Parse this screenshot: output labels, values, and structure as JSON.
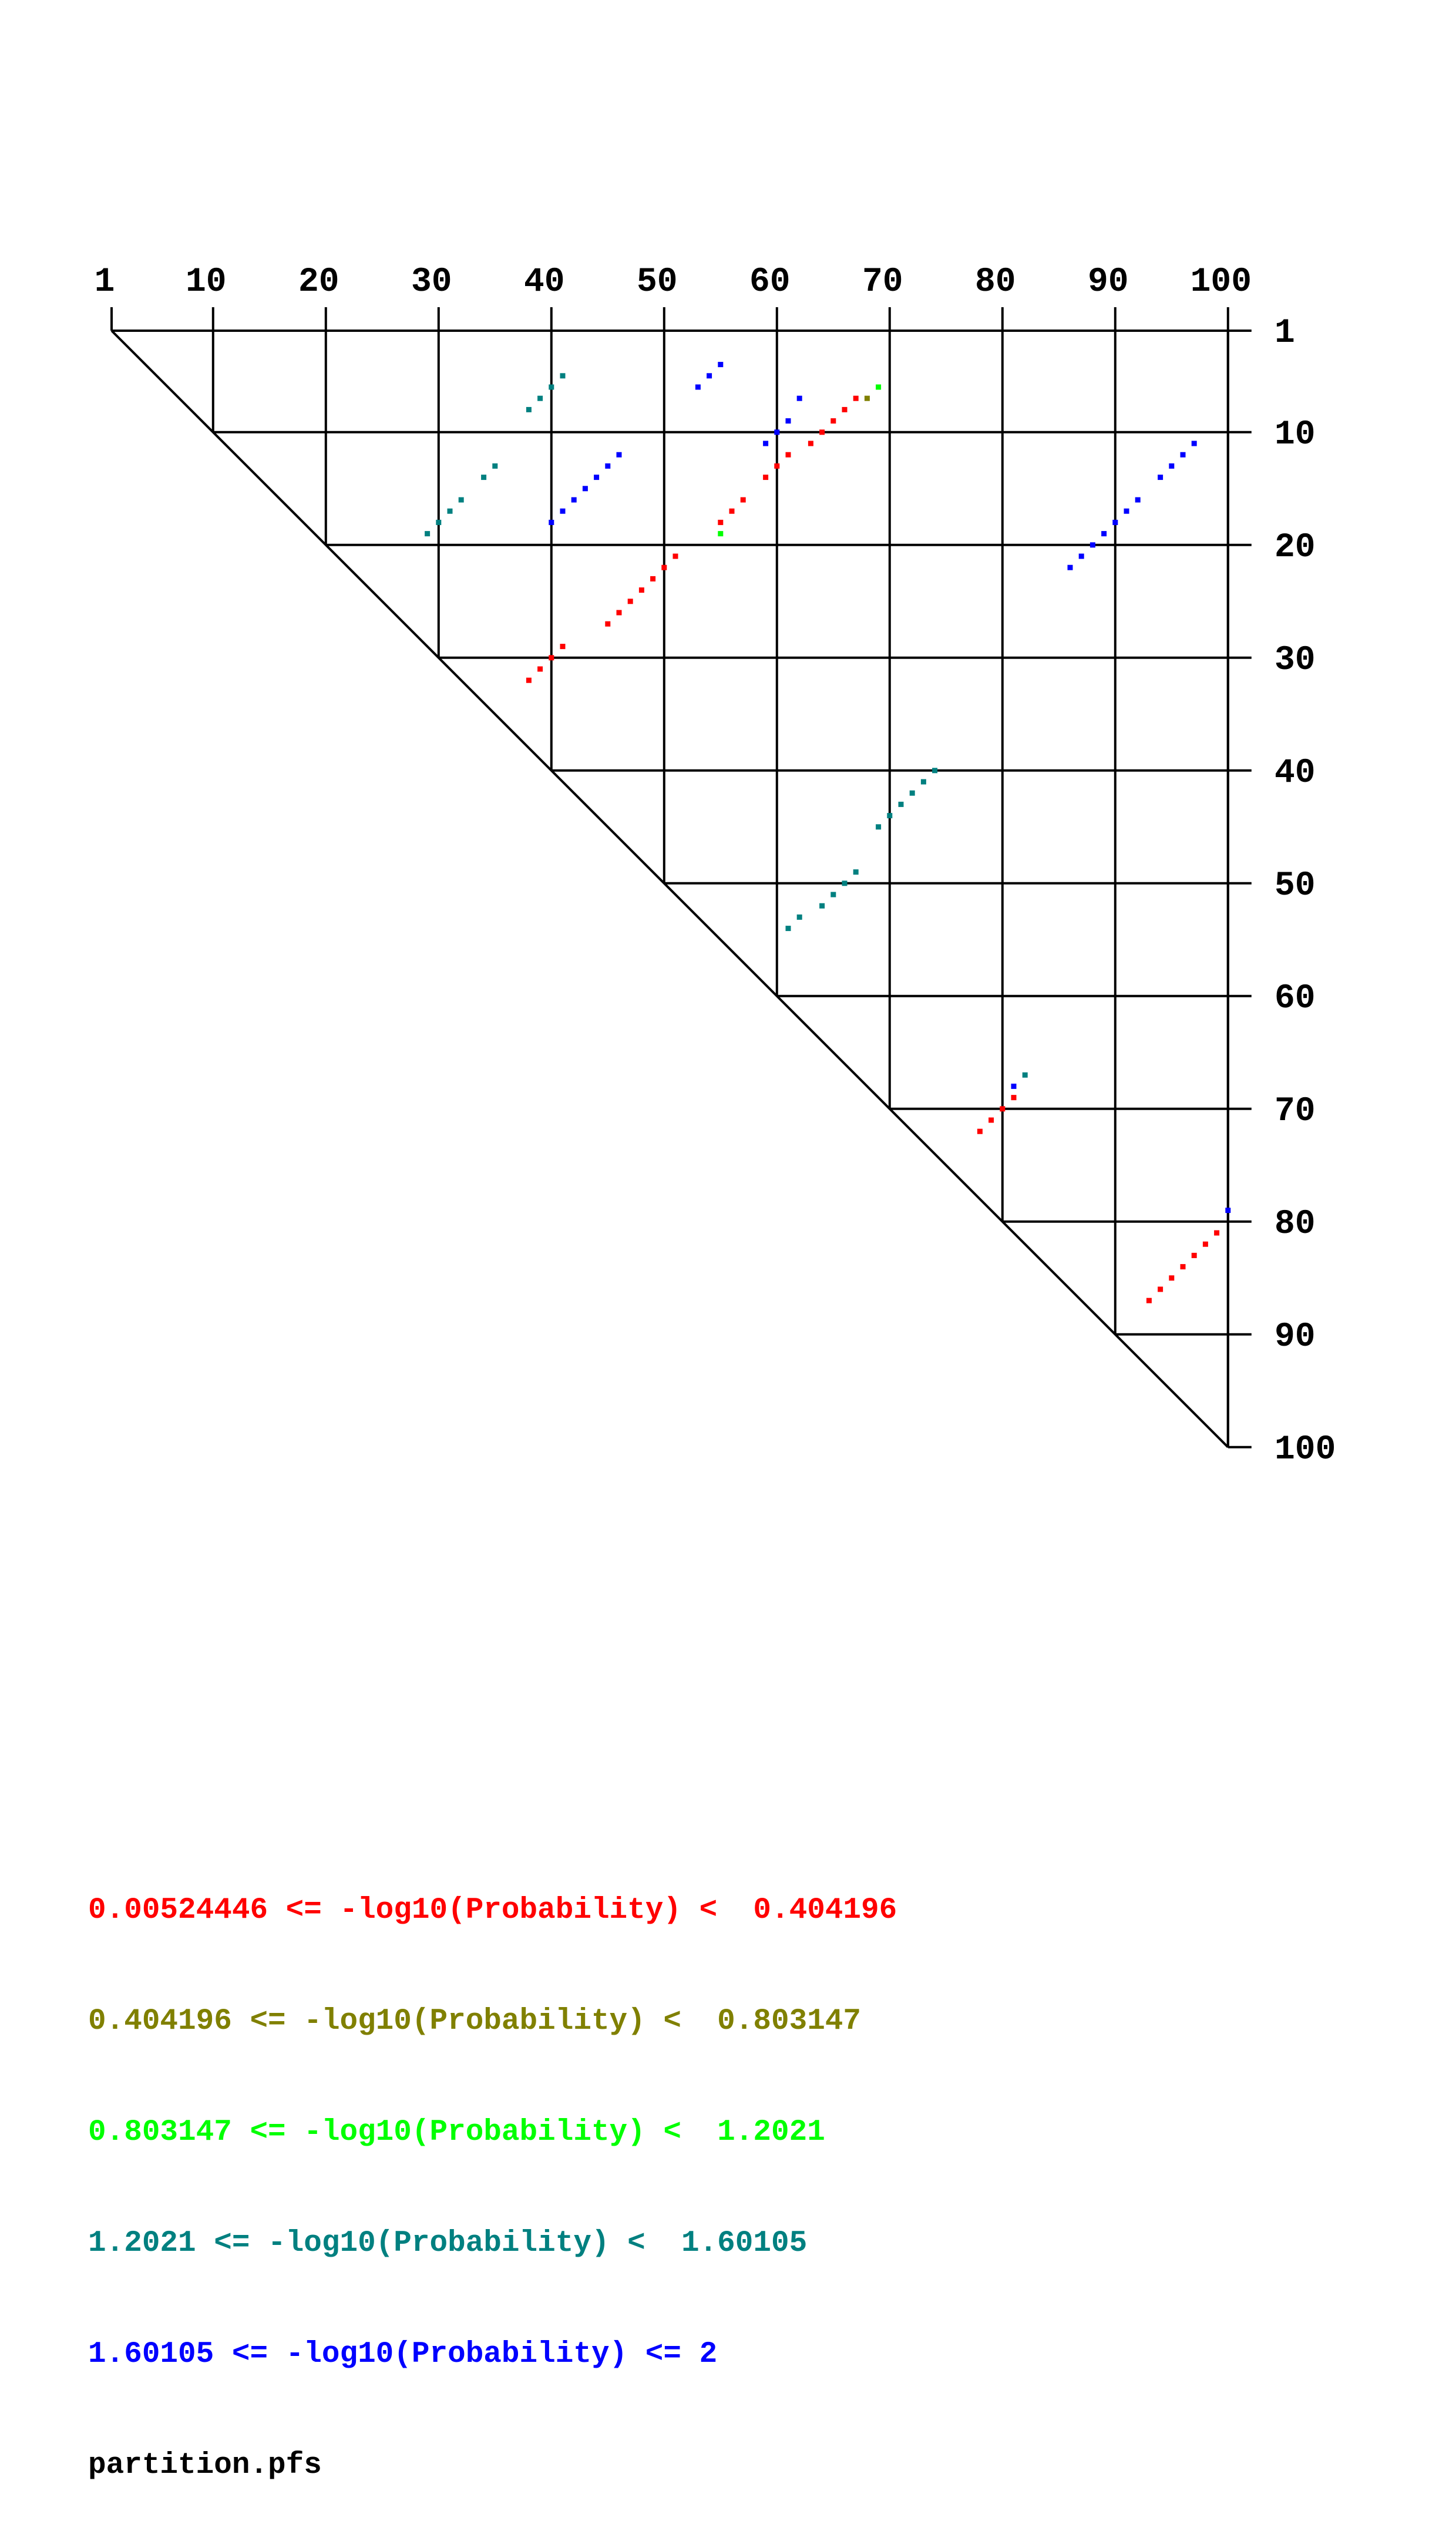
{
  "chart_data": {
    "type": "heatmap",
    "sequence_length": 100,
    "top_tick_labels": [
      "1",
      "10",
      "20",
      "30",
      "40",
      "50",
      "60",
      "70",
      "80",
      "90",
      "100"
    ],
    "right_tick_labels": [
      "1",
      "10",
      "20",
      "30",
      "40",
      "50",
      "60",
      "70",
      "80",
      "90",
      "100"
    ],
    "legend": [
      {
        "label": "0.00524446 <= -log10(Probability) <  0.404196",
        "color": "#ff0000"
      },
      {
        "label": "0.404196 <= -log10(Probability) <  0.803147",
        "color": "#808000"
      },
      {
        "label": "0.803147 <= -log10(Probability) <  1.2021",
        "color": "#00ff00"
      },
      {
        "label": "1.2021 <= -log10(Probability) <  1.60105",
        "color": "#008080"
      },
      {
        "label": "1.60105 <= -log10(Probability) <= 2",
        "color": "#0000ff"
      }
    ],
    "filename": "partition.pfs",
    "points": [
      [
        41,
        5,
        3
      ],
      [
        40,
        6,
        3
      ],
      [
        39,
        7,
        3
      ],
      [
        38,
        8,
        3
      ],
      [
        55,
        4,
        4
      ],
      [
        54,
        5,
        4
      ],
      [
        53,
        6,
        4
      ],
      [
        62,
        7,
        4
      ],
      [
        61,
        9,
        4
      ],
      [
        60,
        10,
        4
      ],
      [
        59,
        11,
        4
      ],
      [
        69,
        6,
        2
      ],
      [
        68,
        7,
        1
      ],
      [
        67,
        7,
        0
      ],
      [
        66,
        8,
        0
      ],
      [
        65,
        9,
        0
      ],
      [
        64,
        10,
        0
      ],
      [
        63,
        11,
        0
      ],
      [
        61,
        12,
        0
      ],
      [
        60,
        13,
        0
      ],
      [
        59,
        14,
        0
      ],
      [
        57,
        16,
        0
      ],
      [
        56,
        17,
        0
      ],
      [
        55,
        18,
        0
      ],
      [
        55,
        19,
        2
      ],
      [
        35,
        13,
        3
      ],
      [
        34,
        14,
        3
      ],
      [
        32,
        16,
        3
      ],
      [
        31,
        17,
        3
      ],
      [
        30,
        18,
        3
      ],
      [
        29,
        19,
        3
      ],
      [
        46,
        12,
        4
      ],
      [
        45,
        13,
        4
      ],
      [
        44,
        14,
        4
      ],
      [
        43,
        15,
        4
      ],
      [
        42,
        16,
        4
      ],
      [
        41,
        17,
        4
      ],
      [
        40,
        18,
        4
      ],
      [
        97,
        11,
        4
      ],
      [
        96,
        12,
        4
      ],
      [
        95,
        13,
        4
      ],
      [
        94,
        14,
        4
      ],
      [
        92,
        16,
        4
      ],
      [
        91,
        17,
        4
      ],
      [
        90,
        18,
        4
      ],
      [
        89,
        19,
        4
      ],
      [
        88,
        20,
        4
      ],
      [
        87,
        21,
        4
      ],
      [
        86,
        22,
        4
      ],
      [
        51,
        21,
        0
      ],
      [
        50,
        22,
        0
      ],
      [
        49,
        23,
        0
      ],
      [
        48,
        24,
        0
      ],
      [
        47,
        25,
        0
      ],
      [
        46,
        26,
        0
      ],
      [
        45,
        27,
        0
      ],
      [
        41,
        29,
        0
      ],
      [
        40,
        30,
        0
      ],
      [
        39,
        31,
        0
      ],
      [
        38,
        32,
        0
      ],
      [
        74,
        40,
        3
      ],
      [
        73,
        41,
        3
      ],
      [
        72,
        42,
        3
      ],
      [
        71,
        43,
        3
      ],
      [
        70,
        44,
        3
      ],
      [
        69,
        45,
        3
      ],
      [
        67,
        49,
        3
      ],
      [
        66,
        50,
        3
      ],
      [
        65,
        51,
        3
      ],
      [
        64,
        52,
        3
      ],
      [
        62,
        53,
        3
      ],
      [
        61,
        54,
        3
      ],
      [
        82,
        67,
        3
      ],
      [
        81,
        68,
        4
      ],
      [
        81,
        69,
        0
      ],
      [
        80,
        70,
        0
      ],
      [
        79,
        71,
        0
      ],
      [
        78,
        72,
        0
      ],
      [
        100,
        79,
        4
      ],
      [
        99,
        81,
        0
      ],
      [
        98,
        82,
        0
      ],
      [
        97,
        83,
        0
      ],
      [
        96,
        84,
        0
      ],
      [
        95,
        85,
        0
      ],
      [
        94,
        86,
        0
      ],
      [
        93,
        87,
        0
      ]
    ]
  }
}
